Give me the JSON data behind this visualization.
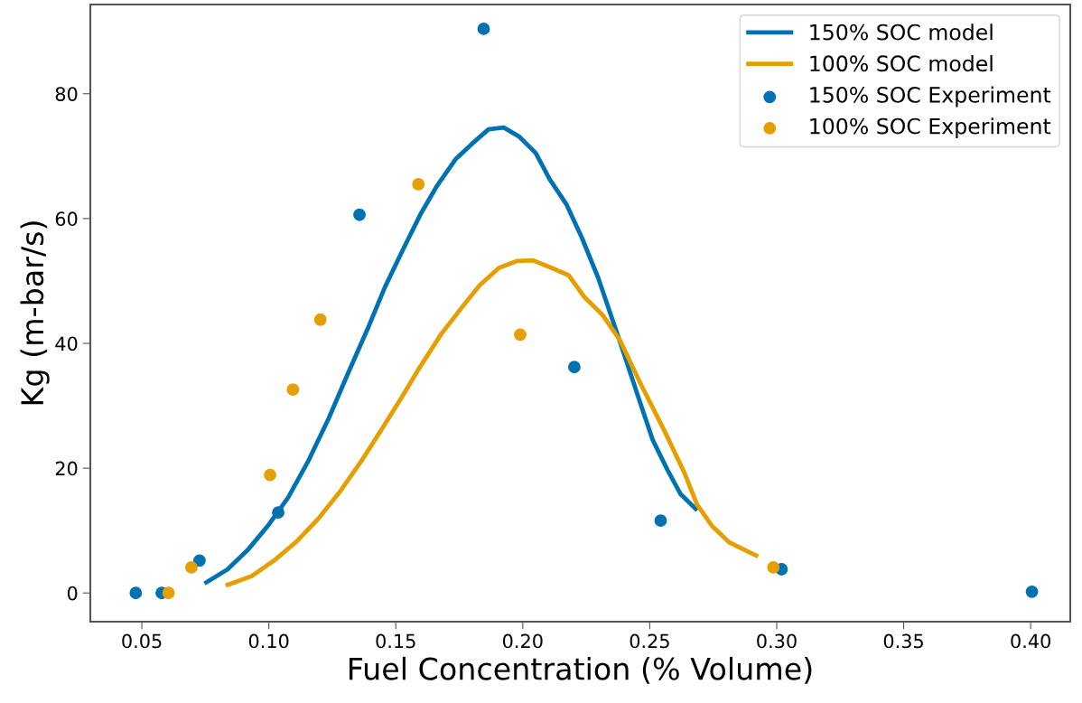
{
  "chart_data": {
    "type": "line",
    "xlabel": "Fuel Concentration (% Volume)",
    "ylabel": "Kg (m-bar/s)",
    "xlim": [
      0.0297,
      0.4156
    ],
    "ylim": [
      -4.6,
      94.3
    ],
    "xticks": [
      {
        "value": 0.05,
        "label": "0.05"
      },
      {
        "value": 0.1,
        "label": "0.10"
      },
      {
        "value": 0.15,
        "label": "0.15"
      },
      {
        "value": 0.2,
        "label": "0.20"
      },
      {
        "value": 0.25,
        "label": "0.25"
      },
      {
        "value": 0.3,
        "label": "0.30"
      },
      {
        "value": 0.35,
        "label": "0.35"
      },
      {
        "value": 0.4,
        "label": "0.40"
      }
    ],
    "yticks": [
      0,
      20,
      40,
      60,
      80
    ],
    "grid": false,
    "legend": "top right",
    "series": [
      {
        "name": "150% SOC model",
        "color": "#0072b2",
        "marker": "none",
        "line_style": "solid",
        "x": [
          0.0754,
          0.0838,
          0.0917,
          0.0997,
          0.1076,
          0.1156,
          0.1235,
          0.1314,
          0.1394,
          0.1457,
          0.1529,
          0.16,
          0.1663,
          0.1735,
          0.1798,
          0.1865,
          0.1925,
          0.1987,
          0.2051,
          0.2106,
          0.2173,
          0.2233,
          0.2297,
          0.2384,
          0.2463,
          0.2511,
          0.257,
          0.2622,
          0.2681
        ],
        "values": [
          1.7,
          3.8,
          6.9,
          10.8,
          15.3,
          21.2,
          27.9,
          35.4,
          42.8,
          49.0,
          55.1,
          60.9,
          65.3,
          69.5,
          71.9,
          74.3,
          74.6,
          73.1,
          70.5,
          66.3,
          62.2,
          56.9,
          50.5,
          40.1,
          30.4,
          24.6,
          19.7,
          15.8,
          13.5
        ]
      },
      {
        "name": "100% SOC model",
        "color": "#e69f00",
        "marker": "none",
        "line_style": "solid",
        "x": [
          0.0838,
          0.0933,
          0.1021,
          0.1108,
          0.1195,
          0.1283,
          0.1362,
          0.1441,
          0.1521,
          0.1592,
          0.1679,
          0.1759,
          0.183,
          0.1906,
          0.1978,
          0.2041,
          0.2114,
          0.2181,
          0.2241,
          0.2313,
          0.2384,
          0.2463,
          0.2559,
          0.2638,
          0.2686,
          0.2746,
          0.2813,
          0.2919
        ],
        "values": [
          1.3,
          2.7,
          5.2,
          8.2,
          11.9,
          16.4,
          21.0,
          26.0,
          31.2,
          36.0,
          41.5,
          45.7,
          49.3,
          52.1,
          53.2,
          53.3,
          52.1,
          50.9,
          47.5,
          44.6,
          40.4,
          33.6,
          25.9,
          19.1,
          14.2,
          10.7,
          8.1,
          6.0
        ]
      },
      {
        "name": "150% SOC Experiment",
        "type": "scatter",
        "color": "#0072b2",
        "marker": "circle",
        "x": [
          0.0476,
          0.0578,
          0.0727,
          0.1037,
          0.1357,
          0.1846,
          0.2203,
          0.2543,
          0.3019,
          0.4005
        ],
        "values": [
          0,
          0,
          5.2,
          12.9,
          60.6,
          90.4,
          36.2,
          11.6,
          3.8,
          0.2
        ]
      },
      {
        "name": "100% SOC Experiment",
        "type": "scatter",
        "color": "#e69f00",
        "marker": "circle",
        "x": [
          0.0605,
          0.0695,
          0.1005,
          0.1095,
          0.1203,
          0.1589,
          0.199,
          0.2987
        ],
        "values": [
          0,
          4.1,
          18.9,
          32.6,
          43.8,
          65.5,
          41.4,
          4.1
        ]
      }
    ]
  }
}
